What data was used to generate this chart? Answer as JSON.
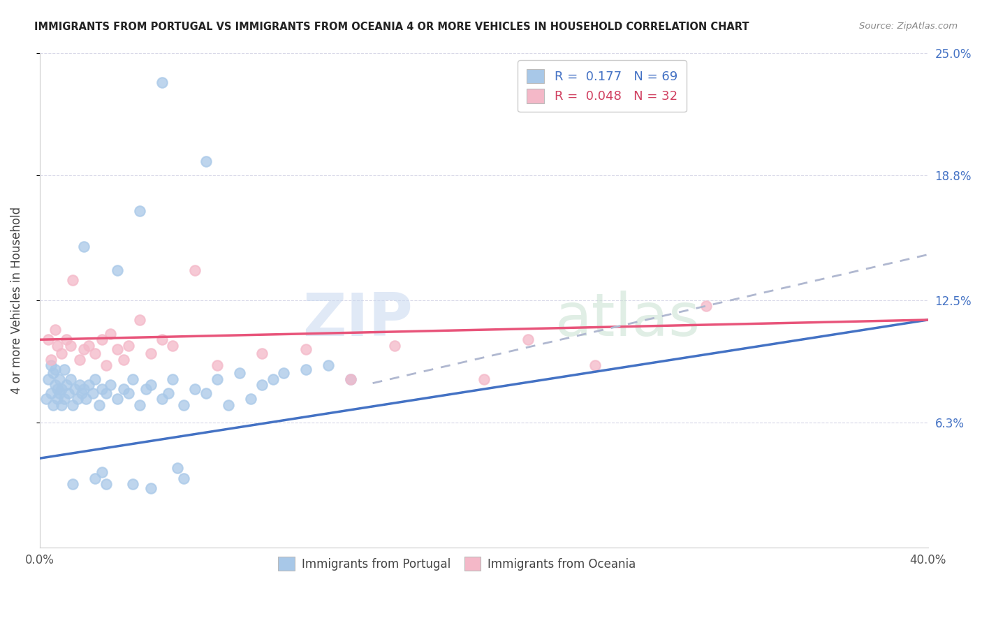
{
  "title": "IMMIGRANTS FROM PORTUGAL VS IMMIGRANTS FROM OCEANIA 4 OR MORE VEHICLES IN HOUSEHOLD CORRELATION CHART",
  "source": "Source: ZipAtlas.com",
  "ylabel": "4 or more Vehicles in Household",
  "xlim": [
    0.0,
    40.0
  ],
  "ylim": [
    0.0,
    25.0
  ],
  "yticks_right": [
    6.3,
    12.5,
    18.8,
    25.0
  ],
  "ytick_labels_right": [
    "6.3%",
    "12.5%",
    "18.8%",
    "25.0%"
  ],
  "xticks": [
    0.0,
    10.0,
    20.0,
    30.0,
    40.0
  ],
  "xtick_labels": [
    "0.0%",
    "",
    "",
    "",
    "40.0%"
  ],
  "legend_label1": "R =  0.177   N = 69",
  "legend_label2": "R =  0.048   N = 32",
  "color_portugal": "#a8c8e8",
  "color_oceania": "#f4b8c8",
  "color_line_portugal": "#4472c4",
  "color_line_oceania": "#e8547a",
  "color_line_dashed": "#b0b8d0",
  "watermark_zip": "ZIP",
  "watermark_atlas": "atlas",
  "blue_line_x0": 0.0,
  "blue_line_y0": 4.5,
  "blue_line_x1": 40.0,
  "blue_line_y1": 11.5,
  "pink_line_x0": 0.0,
  "pink_line_y0": 10.5,
  "pink_line_x1": 40.0,
  "pink_line_y1": 11.5,
  "dashed_line_x0": 15.0,
  "dashed_line_y0": 8.3,
  "dashed_line_x1": 40.0,
  "dashed_line_y1": 14.8,
  "blue_x": [
    0.3,
    0.4,
    0.5,
    0.5,
    0.6,
    0.6,
    0.7,
    0.7,
    0.8,
    0.8,
    0.9,
    0.9,
    1.0,
    1.0,
    1.1,
    1.1,
    1.2,
    1.3,
    1.4,
    1.5,
    1.6,
    1.7,
    1.8,
    1.9,
    2.0,
    2.1,
    2.2,
    2.4,
    2.5,
    2.7,
    2.8,
    3.0,
    3.2,
    3.5,
    3.8,
    4.0,
    4.2,
    4.5,
    4.8,
    5.0,
    5.5,
    5.8,
    6.0,
    6.5,
    7.0,
    7.5,
    8.0,
    8.5,
    9.0,
    9.5,
    10.0,
    10.5,
    11.0,
    12.0,
    13.0,
    14.0,
    5.5,
    7.5,
    4.5,
    2.0,
    3.5,
    2.5,
    1.5,
    2.8,
    4.2,
    6.5,
    5.0,
    3.0,
    6.2
  ],
  "blue_y": [
    7.5,
    8.5,
    7.8,
    9.2,
    7.2,
    8.8,
    8.2,
    9.0,
    7.5,
    8.0,
    7.8,
    8.5,
    7.2,
    8.0,
    7.5,
    9.0,
    8.2,
    7.8,
    8.5,
    7.2,
    8.0,
    7.5,
    8.2,
    7.8,
    8.0,
    7.5,
    8.2,
    7.8,
    8.5,
    7.2,
    8.0,
    7.8,
    8.2,
    7.5,
    8.0,
    7.8,
    8.5,
    7.2,
    8.0,
    8.2,
    7.5,
    7.8,
    8.5,
    7.2,
    8.0,
    7.8,
    8.5,
    7.2,
    8.8,
    7.5,
    8.2,
    8.5,
    8.8,
    9.0,
    9.2,
    8.5,
    23.5,
    19.5,
    17.0,
    15.2,
    14.0,
    3.5,
    3.2,
    3.8,
    3.2,
    3.5,
    3.0,
    3.2,
    4.0
  ],
  "pink_x": [
    0.4,
    0.5,
    0.7,
    0.8,
    1.0,
    1.2,
    1.4,
    1.5,
    1.8,
    2.0,
    2.2,
    2.5,
    2.8,
    3.0,
    3.2,
    3.5,
    3.8,
    4.0,
    4.5,
    5.0,
    5.5,
    6.0,
    7.0,
    8.0,
    10.0,
    12.0,
    14.0,
    16.0,
    20.0,
    22.0,
    25.0,
    30.0
  ],
  "pink_y": [
    10.5,
    9.5,
    11.0,
    10.2,
    9.8,
    10.5,
    10.2,
    13.5,
    9.5,
    10.0,
    10.2,
    9.8,
    10.5,
    9.2,
    10.8,
    10.0,
    9.5,
    10.2,
    11.5,
    9.8,
    10.5,
    10.2,
    14.0,
    9.2,
    9.8,
    10.0,
    8.5,
    10.2,
    8.5,
    10.5,
    9.2,
    12.2
  ]
}
